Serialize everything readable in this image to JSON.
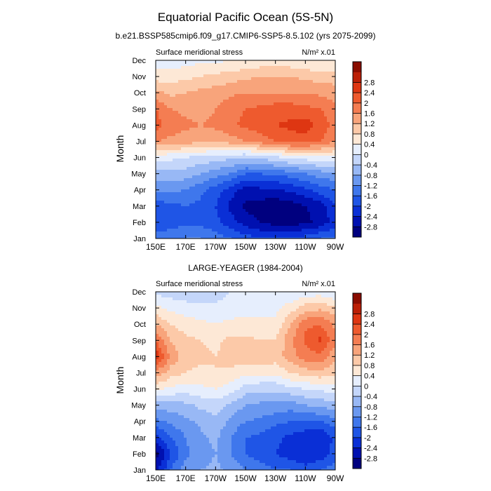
{
  "page": {
    "title": "Equatorial Pacific Ocean (5S-5N)",
    "colors": [
      "#00007f",
      "#0010b0",
      "#0a2fd6",
      "#1f55e6",
      "#3f77ec",
      "#6a98f0",
      "#98b8f5",
      "#c4d6fa",
      "#e6eefd",
      "#fde8d6",
      "#fcc9a8",
      "#f8a47b",
      "#f47d52",
      "#ee5a2e",
      "#de3612",
      "#bb1f06",
      "#8a0d00"
    ],
    "levels": [
      -2.8,
      -2.4,
      -2,
      -1.6,
      -1.2,
      -0.8,
      -0.4,
      0,
      0.4,
      0.8,
      1.2,
      1.6,
      2,
      2.4,
      2.8
    ]
  },
  "chart_data": [
    {
      "type": "heatmap",
      "title": "b.e21.BSSP585cmip6.f09_g17.CMIP6-SSP5-8.5.102 (yrs 2075-2099)",
      "left_label": "Surface meridional stress",
      "units_label": "N/m² x.01",
      "ylabel": "Month",
      "xlabel": "",
      "x_ticks": [
        "150E",
        "170E",
        "170W",
        "150W",
        "130W",
        "110W",
        "90W"
      ],
      "y_ticks": [
        "Jan",
        "Feb",
        "Mar",
        "Apr",
        "May",
        "Jun",
        "Jul",
        "Aug",
        "Sep",
        "Oct",
        "Nov",
        "Dec"
      ],
      "colorbar_labels": [
        "-2.8",
        "-2.4",
        "-2",
        "-1.6",
        "-1.2",
        "-0.8",
        "-0.4",
        "0",
        "0.4",
        "0.8",
        "1.2",
        "1.6",
        "2",
        "2.4",
        "2.8"
      ],
      "values": [
        [
          -1.4,
          -1.3,
          -1.2,
          -1.2,
          -1.4,
          -1.6,
          -1.8,
          -2.0,
          -2.0,
          -2.0,
          -1.8,
          -1.6,
          -1.5
        ],
        [
          -2.0,
          -1.8,
          -1.7,
          -1.7,
          -1.9,
          -2.2,
          -2.6,
          -2.8,
          -3.0,
          -3.0,
          -2.9,
          -2.7,
          -2.2
        ],
        [
          -1.9,
          -1.7,
          -1.6,
          -1.7,
          -2.0,
          -2.5,
          -2.9,
          -3.0,
          -3.1,
          -3.0,
          -2.8,
          -2.6,
          -2.0
        ],
        [
          -1.0,
          -1.1,
          -1.2,
          -1.5,
          -1.8,
          -2.2,
          -2.6,
          -2.5,
          -2.5,
          -2.3,
          -2.1,
          -1.8,
          -1.6
        ],
        [
          -0.6,
          -0.5,
          -0.6,
          -0.8,
          -1.0,
          -1.2,
          -1.6,
          -1.6,
          -1.5,
          -1.4,
          -1.2,
          -1.0,
          -0.9
        ],
        [
          0.2,
          0.1,
          0.0,
          -0.1,
          -0.2,
          -0.3,
          -0.4,
          -0.3,
          -0.1,
          0.1,
          0.2,
          0.3,
          0.3
        ],
        [
          1.6,
          1.5,
          1.4,
          1.3,
          1.3,
          1.4,
          1.6,
          1.8,
          2.0,
          2.2,
          2.2,
          2.0,
          1.6
        ],
        [
          2.2,
          1.8,
          1.7,
          1.6,
          1.7,
          1.9,
          2.1,
          2.2,
          2.4,
          2.5,
          2.6,
          2.3,
          1.8
        ],
        [
          2.0,
          1.6,
          1.5,
          1.4,
          1.6,
          1.9,
          2.0,
          2.1,
          2.2,
          2.2,
          2.1,
          2.0,
          1.7
        ],
        [
          1.3,
          1.1,
          1.2,
          1.3,
          1.4,
          1.5,
          1.6,
          1.6,
          1.6,
          1.6,
          1.6,
          1.5,
          1.4
        ],
        [
          0.6,
          0.6,
          0.7,
          0.8,
          0.9,
          1.0,
          1.1,
          1.2,
          1.2,
          1.2,
          1.1,
          1.0,
          1.0
        ],
        [
          0.2,
          0.2,
          0.2,
          0.3,
          0.3,
          0.4,
          0.4,
          0.5,
          0.5,
          0.5,
          0.4,
          0.4,
          0.4
        ]
      ]
    },
    {
      "type": "heatmap",
      "title": "LARGE-YEAGER (1984-2004)",
      "left_label": "Surface meridional stress",
      "units_label": "N/m² x.01",
      "ylabel": "Month",
      "xlabel": "",
      "x_ticks": [
        "150E",
        "170E",
        "170W",
        "150W",
        "130W",
        "110W",
        "90W"
      ],
      "y_ticks": [
        "Jan",
        "Feb",
        "Mar",
        "Apr",
        "May",
        "Jun",
        "Jul",
        "Aug",
        "Sep",
        "Oct",
        "Nov",
        "Dec"
      ],
      "colorbar_labels": [
        "-2.8",
        "-2.4",
        "-2",
        "-1.6",
        "-1.2",
        "-0.8",
        "-0.4",
        "0",
        "0.4",
        "0.8",
        "1.2",
        "1.6",
        "2",
        "2.4",
        "2.8"
      ],
      "values": [
        [
          -2.6,
          -1.6,
          -1.0,
          -0.8,
          -0.7,
          -0.9,
          -1.2,
          -1.4,
          -1.6,
          -1.6,
          -1.8,
          -1.6,
          -1.4
        ],
        [
          -3.0,
          -2.0,
          -1.3,
          -1.0,
          -0.8,
          -1.2,
          -1.6,
          -1.8,
          -2.0,
          -2.2,
          -2.4,
          -2.3,
          -1.8
        ],
        [
          -2.2,
          -1.6,
          -1.2,
          -0.9,
          -0.7,
          -1.2,
          -1.6,
          -1.7,
          -1.9,
          -2.1,
          -2.3,
          -2.4,
          -1.9
        ],
        [
          -1.3,
          -1.1,
          -0.9,
          -0.7,
          -0.5,
          -0.9,
          -1.2,
          -1.3,
          -1.5,
          -1.6,
          -1.6,
          -1.6,
          -1.4
        ],
        [
          -0.6,
          -0.6,
          -0.5,
          -0.3,
          -0.2,
          -0.5,
          -0.8,
          -0.9,
          -0.9,
          -1.0,
          -0.8,
          -0.7,
          -0.5
        ],
        [
          0.5,
          0.3,
          0.2,
          0.3,
          0.4,
          0.2,
          -0.2,
          -0.3,
          -0.3,
          -0.1,
          0.0,
          0.1,
          0.2
        ],
        [
          1.5,
          1.0,
          0.8,
          0.7,
          0.8,
          0.7,
          0.5,
          0.5,
          0.5,
          0.8,
          1.0,
          1.1,
          0.9
        ],
        [
          2.7,
          1.5,
          1.0,
          0.9,
          0.8,
          1.0,
          1.1,
          1.2,
          1.0,
          1.4,
          1.8,
          1.9,
          1.3
        ],
        [
          2.0,
          1.2,
          0.9,
          0.8,
          0.7,
          0.9,
          0.9,
          0.8,
          0.8,
          1.5,
          2.1,
          2.5,
          1.7
        ],
        [
          1.2,
          0.8,
          0.6,
          0.5,
          0.4,
          0.5,
          0.5,
          0.5,
          0.5,
          1.2,
          1.9,
          2.0,
          1.5
        ],
        [
          0.5,
          0.3,
          0.2,
          0.1,
          0.1,
          0.2,
          0.3,
          0.3,
          0.3,
          0.6,
          1.0,
          1.1,
          0.9
        ],
        [
          -0.1,
          -0.2,
          -0.3,
          -0.3,
          -0.2,
          0.0,
          0.1,
          0.1,
          0.0,
          0.0,
          0.1,
          0.2,
          -0.1
        ]
      ]
    }
  ]
}
